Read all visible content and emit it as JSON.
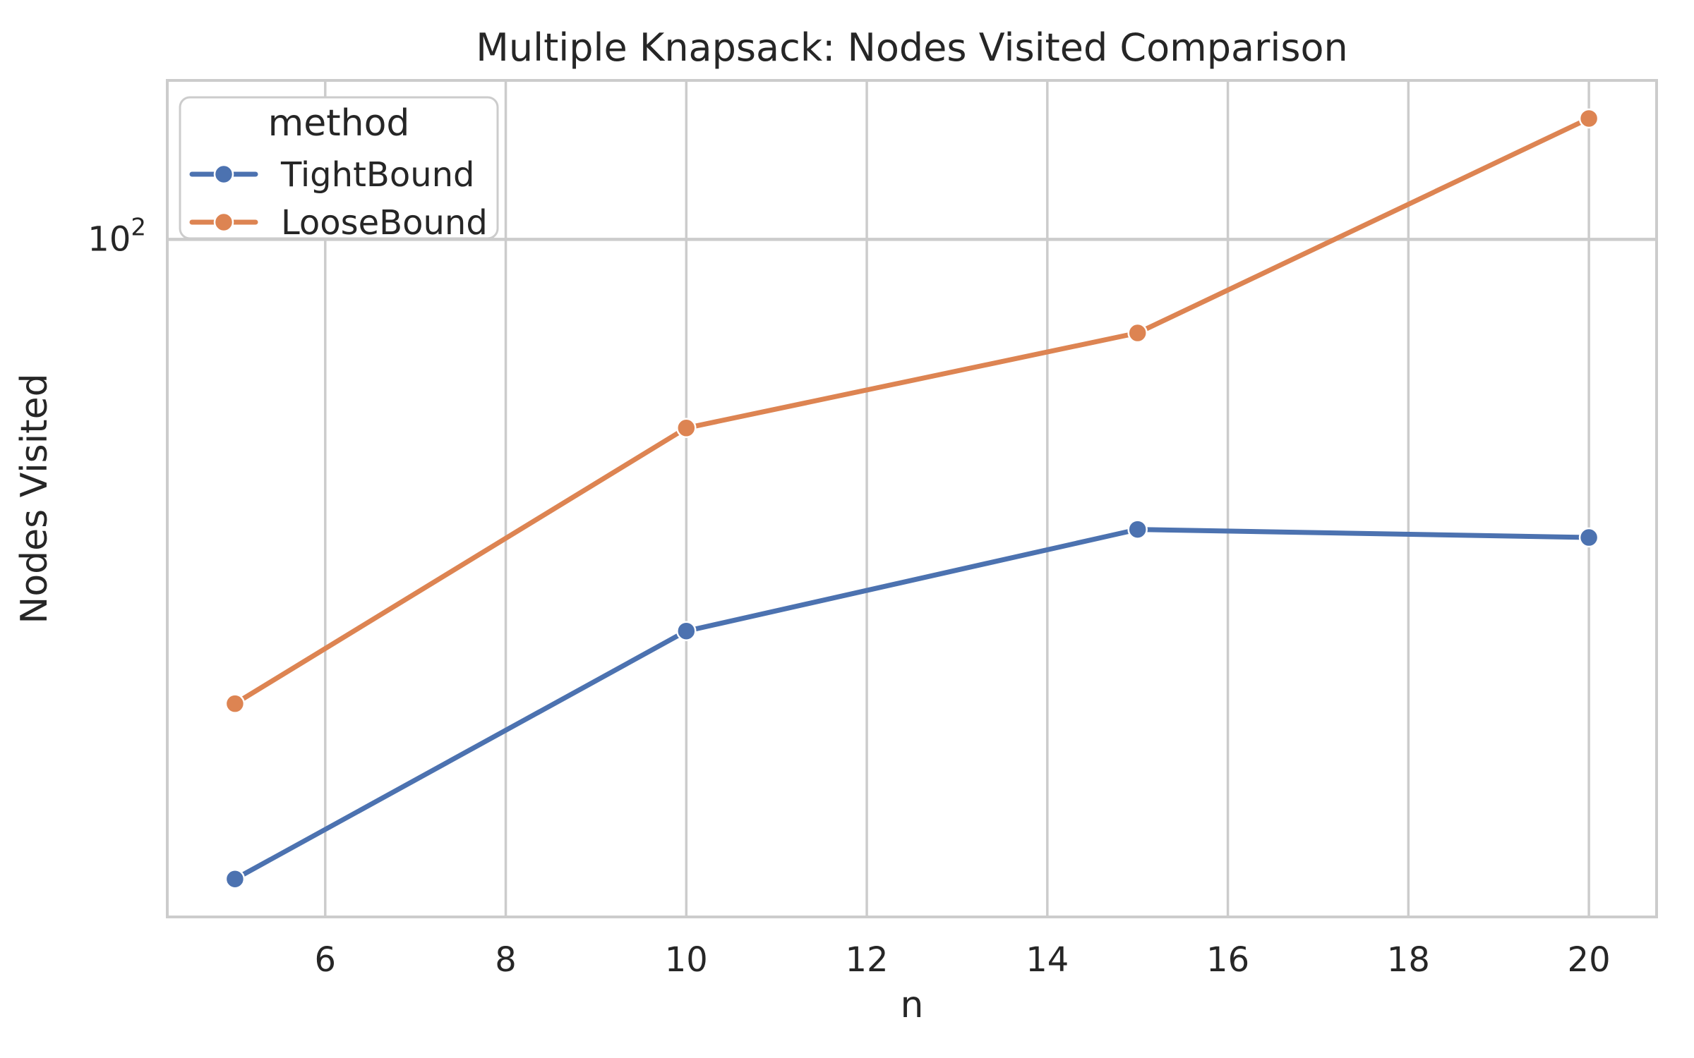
{
  "chart_data": {
    "type": "line",
    "title": "Multiple Knapsack: Nodes Visited Comparison",
    "xlabel": "n",
    "ylabel": "Nodes Visited",
    "x": [
      5,
      10,
      15,
      20
    ],
    "series": [
      {
        "name": "TightBound",
        "color": "#4C72B0",
        "values": [
          14,
          30,
          41,
          40
        ]
      },
      {
        "name": "LooseBound",
        "color": "#DD8452",
        "values": [
          24,
          56,
          75,
          145
        ]
      }
    ],
    "legend": {
      "title": "method",
      "position": "upper-left",
      "entries": [
        "TightBound",
        "LooseBound"
      ]
    },
    "x_ticks": [
      6,
      8,
      10,
      12,
      14,
      16,
      18,
      20
    ],
    "y_scale": "log",
    "y_ticks": [
      {
        "value": 100,
        "base": "10",
        "exponent": "2"
      }
    ],
    "xlim": [
      4.25,
      20.75
    ],
    "ylim": [
      12.46,
      163.0
    ],
    "grid": true,
    "colors": {
      "grid": "#CCCCCC",
      "spine": "#CCCCCC",
      "text": "#262626",
      "background": "#FFFFFF"
    }
  }
}
